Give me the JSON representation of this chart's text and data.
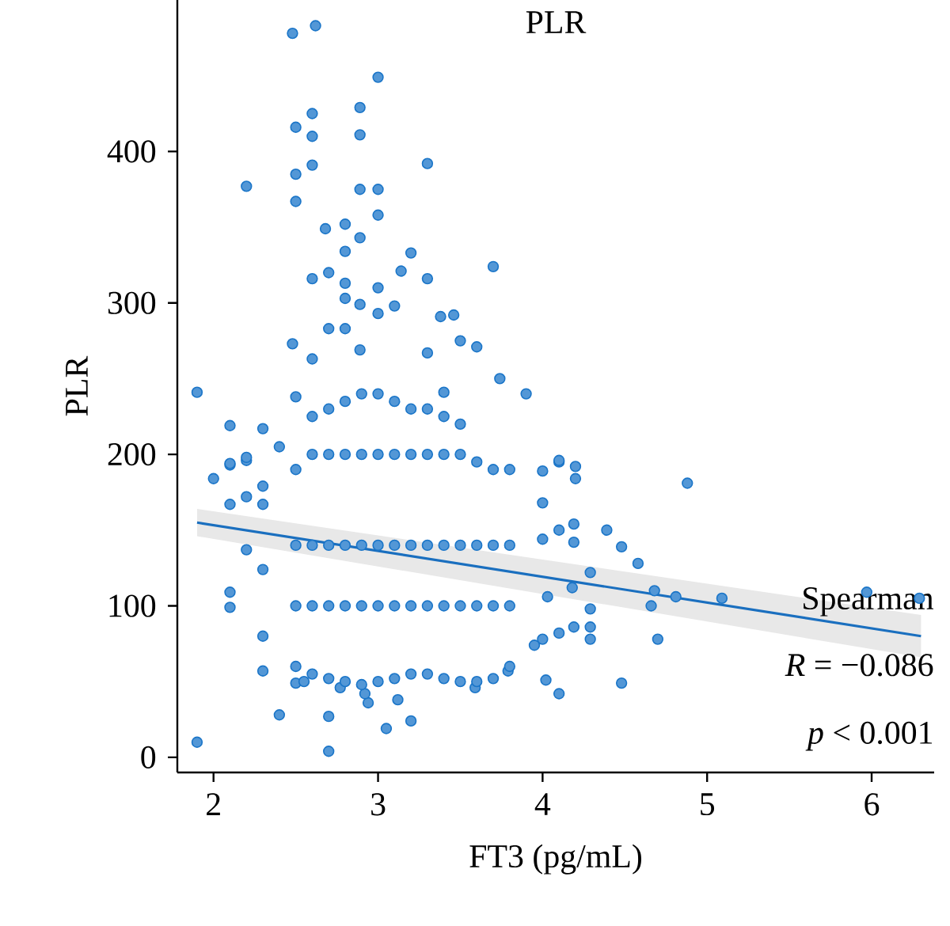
{
  "chart_data": {
    "type": "scatter",
    "title": "PLR",
    "xlabel": "FT3 (pg/mL)",
    "ylabel": "PLR",
    "annotations": [
      "Spearman",
      "*R* = −0.086",
      "*p* < 0.001"
    ],
    "xlim": [
      1.78,
      6.38
    ],
    "ylim": [
      -10,
      500
    ],
    "xticks": [
      2,
      3,
      4,
      5,
      6
    ],
    "yticks": [
      0,
      100,
      200,
      300,
      400
    ],
    "series": [
      {
        "marker": "circle",
        "color": "#1a75c8",
        "x": [
          2.48,
          2.62,
          3.0,
          2.89,
          2.6,
          2.5,
          2.6,
          2.89,
          2.6,
          3.3,
          2.5,
          2.2,
          2.89,
          3.0,
          2.5,
          3.0,
          2.68,
          2.8,
          2.89,
          2.8,
          3.2,
          3.7,
          2.7,
          2.6,
          3.14,
          3.3,
          3.0,
          2.8,
          2.8,
          2.89,
          3.1,
          3.38,
          3.46,
          2.7,
          2.8,
          3.0,
          2.48,
          2.6,
          2.89,
          3.3,
          3.5,
          3.6,
          1.9,
          2.5,
          3.9,
          3.74,
          3.4,
          2.1,
          2.3,
          2.4,
          2.1,
          2.2,
          4.1,
          4.2,
          2.0,
          2.1,
          2.2,
          2.1,
          2.2,
          2.2,
          2.3,
          2.3,
          2.3,
          2.3,
          2.3,
          2.1,
          2.1,
          2.4,
          2.5,
          2.7,
          2.7,
          1.9,
          3.05,
          3.2,
          2.94,
          3.12,
          4.88,
          4.1,
          4.2,
          4.0,
          4.0,
          4.39,
          4.48,
          4.58,
          4.19,
          4.29,
          4.1,
          4.0,
          4.68,
          4.81,
          5.09,
          4.66,
          4.7,
          4.29,
          4.29,
          4.19,
          4.1,
          4.0,
          3.95,
          4.29,
          4.19,
          4.18,
          4.03,
          5.97,
          6.29,
          4.48,
          4.02,
          4.1,
          3.79,
          3.59,
          2.55,
          2.77,
          2.92,
          2.5,
          2.6,
          2.7,
          2.8,
          2.9,
          3.0,
          3.1,
          3.2,
          3.3,
          3.4,
          3.5,
          3.6,
          3.7,
          3.8,
          2.5,
          2.6,
          2.7,
          2.8,
          2.9,
          3.0,
          3.1,
          3.2,
          3.3,
          3.4,
          3.5,
          3.6,
          3.7,
          3.8,
          2.5,
          2.6,
          2.7,
          2.8,
          2.9,
          3.0,
          3.1,
          3.2,
          3.3,
          3.4,
          3.5,
          3.6,
          3.7,
          3.8,
          2.5,
          2.6,
          2.7,
          2.8,
          2.9,
          3.0,
          3.1,
          3.2,
          3.3,
          3.4,
          3.5,
          3.6,
          3.7,
          3.8,
          2.6,
          2.7,
          2.8,
          2.9,
          3.0,
          3.1,
          3.2,
          3.3,
          3.4,
          3.5
        ],
        "values": [
          478,
          483,
          449,
          429,
          425,
          416,
          410,
          411,
          391,
          392,
          385,
          377,
          375,
          375,
          367,
          358,
          349,
          352,
          343,
          334,
          333,
          324,
          320,
          316,
          321,
          316,
          310,
          313,
          303,
          299,
          298,
          291,
          292,
          283,
          283,
          293,
          273,
          263,
          269,
          267,
          275,
          271,
          241,
          238,
          240,
          250,
          241,
          219,
          217,
          205,
          193,
          196,
          195,
          192,
          184,
          194,
          198,
          167,
          172,
          137,
          179,
          167,
          124,
          80,
          57,
          109,
          99,
          28,
          49,
          27,
          4,
          10,
          19,
          24,
          36,
          38,
          181,
          196,
          184,
          189,
          168,
          150,
          139,
          128,
          154,
          122,
          150,
          144,
          110,
          106,
          105,
          100,
          78,
          98,
          86,
          86,
          82,
          78,
          74,
          78,
          142,
          112,
          106,
          109,
          105,
          49,
          51,
          42,
          57,
          46,
          50,
          46,
          42,
          60,
          55,
          52,
          50,
          48,
          50,
          52,
          55,
          55,
          52,
          50,
          50,
          52,
          60,
          100,
          100,
          100,
          100,
          100,
          100,
          100,
          100,
          100,
          100,
          100,
          100,
          100,
          100,
          140,
          140,
          140,
          140,
          140,
          140,
          140,
          140,
          140,
          140,
          140,
          140,
          140,
          140,
          190,
          200,
          200,
          200,
          200,
          200,
          200,
          200,
          200,
          200,
          200,
          195,
          190,
          190,
          225,
          230,
          235,
          240,
          240,
          235,
          230,
          230,
          225,
          220
        ]
      },
      {
        "type": "line",
        "marker": "none",
        "color": "#1a6fbf",
        "x": [
          1.9,
          6.3
        ],
        "values": [
          155,
          80
        ],
        "lower": [
          146,
          66
        ],
        "upper": [
          164,
          94
        ]
      }
    ]
  }
}
